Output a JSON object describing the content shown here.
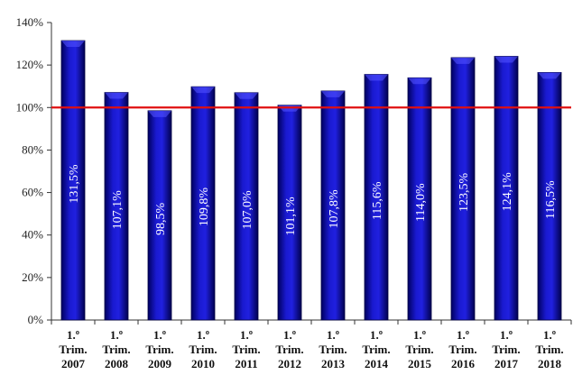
{
  "chart_data": {
    "type": "bar",
    "title": "",
    "xlabel": "",
    "ylabel": "",
    "categories": [
      [
        "1.º",
        "Trim.",
        "2007"
      ],
      [
        "1.º",
        "Trim.",
        "2008"
      ],
      [
        "1.º",
        "Trim.",
        "2009"
      ],
      [
        "1.º",
        "Trim.",
        "2010"
      ],
      [
        "1.º",
        "Trim.",
        "2011"
      ],
      [
        "1.º",
        "Trim.",
        "2012"
      ],
      [
        "1.º",
        "Trim.",
        "2013"
      ],
      [
        "1.º",
        "Trim.",
        "2014"
      ],
      [
        "1.º",
        "Trim.",
        "2015"
      ],
      [
        "1.º",
        "Trim.",
        "2016"
      ],
      [
        "1.º",
        "Trim.",
        "2017"
      ],
      [
        "1.º",
        "Trim.",
        "2018"
      ]
    ],
    "values": [
      131.5,
      107.1,
      98.5,
      109.8,
      107.0,
      101.1,
      107.8,
      115.6,
      114.0,
      123.5,
      124.1,
      116.5
    ],
    "data_labels": [
      "131,5%",
      "107,1%",
      "98,5%",
      "109,8%",
      "107,0%",
      "101,1%",
      "107,8%",
      "115,6%",
      "114,0%",
      "123,5%",
      "124,1%",
      "116,5%"
    ],
    "ylim": [
      0,
      140
    ],
    "yticks": [
      0,
      20,
      40,
      60,
      80,
      100,
      120,
      140
    ],
    "ytick_labels": [
      "0%",
      "20%",
      "40%",
      "60%",
      "80%",
      "100%",
      "120%",
      "140%"
    ],
    "reference_line": {
      "value": 100,
      "color": "#e01010"
    },
    "bar_color": "#1010b0",
    "grid": false,
    "legend": "none"
  }
}
